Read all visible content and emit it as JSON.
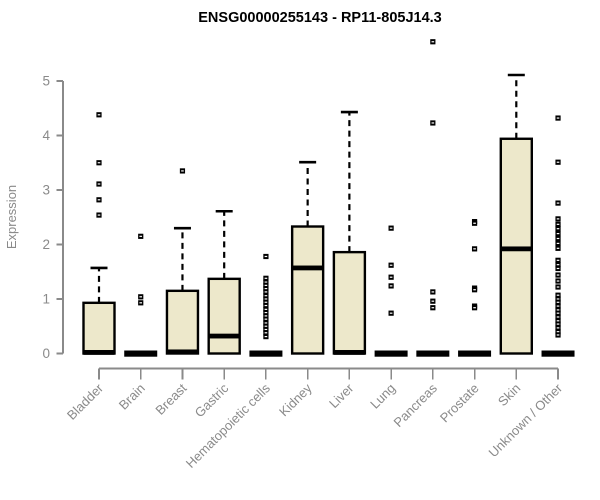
{
  "chart_data": {
    "type": "boxplot",
    "title": "ENSG00000255143 - RP11-805J14.3",
    "ylabel": "Expression",
    "xlabel": "",
    "ylim": [
      0,
      5
    ],
    "yticks": [
      0,
      1,
      2,
      3,
      4,
      5
    ],
    "grid": false,
    "legend": "none",
    "categories": [
      "Bladder",
      "Brain",
      "Breast",
      "Gastric",
      "Hematopoietic cells",
      "Kidney",
      "Liver",
      "Lung",
      "Pancreas",
      "Prostate",
      "Skin",
      "Unknown / Other"
    ],
    "series": [
      {
        "name": "Bladder",
        "q1": 0,
        "median": 0.02,
        "q3": 0.93,
        "whisker_low": 0,
        "whisker_high": 1.57,
        "outliers": [
          4.38,
          3.5,
          3.11,
          2.82,
          2.54
        ]
      },
      {
        "name": "Brain",
        "q1": 0,
        "median": 0,
        "q3": 0,
        "whisker_low": 0,
        "whisker_high": 0,
        "outliers": [
          2.15,
          1.04,
          0.93
        ]
      },
      {
        "name": "Breast",
        "q1": 0,
        "median": 0.03,
        "q3": 1.15,
        "whisker_low": 0,
        "whisker_high": 2.3,
        "outliers": [
          3.35
        ]
      },
      {
        "name": "Gastric",
        "q1": 0,
        "median": 0.32,
        "q3": 1.37,
        "whisker_low": 0,
        "whisker_high": 2.61,
        "outliers": []
      },
      {
        "name": "Hematopoietic cells",
        "q1": 0,
        "median": 0,
        "q3": 0,
        "whisker_low": 0,
        "whisker_high": 0,
        "outliers": [
          1.78,
          1.38,
          1.31,
          1.25,
          1.19,
          1.13,
          1.06,
          1.0,
          0.94,
          0.88,
          0.81,
          0.75,
          0.69,
          0.63,
          0.56,
          0.5,
          0.44,
          0.38,
          0.31
        ]
      },
      {
        "name": "Kidney",
        "q1": 0,
        "median": 1.57,
        "q3": 2.33,
        "whisker_low": 0,
        "whisker_high": 3.51,
        "outliers": []
      },
      {
        "name": "Liver",
        "q1": 0,
        "median": 0.02,
        "q3": 1.86,
        "whisker_low": 0,
        "whisker_high": 4.43,
        "outliers": []
      },
      {
        "name": "Lung",
        "q1": 0,
        "median": 0,
        "q3": 0,
        "whisker_low": 0,
        "whisker_high": 0,
        "outliers": [
          2.3,
          1.62,
          1.4,
          1.24,
          0.74
        ]
      },
      {
        "name": "Pancreas",
        "q1": 0,
        "median": 0,
        "q3": 0,
        "whisker_low": 0,
        "whisker_high": 0,
        "outliers": [
          5.72,
          4.23,
          1.13,
          0.96,
          0.84
        ]
      },
      {
        "name": "Prostate",
        "q1": 0,
        "median": 0,
        "q3": 0,
        "whisker_low": 0,
        "whisker_high": 0,
        "outliers": [
          2.42,
          2.39,
          1.92,
          1.2,
          1.17,
          0.87,
          0.84
        ]
      },
      {
        "name": "Skin",
        "q1": 0,
        "median": 1.92,
        "q3": 3.94,
        "whisker_low": 0,
        "whisker_high": 5.11,
        "outliers": []
      },
      {
        "name": "Unknown / Other",
        "q1": 0,
        "median": 0,
        "q3": 0,
        "whisker_low": 0,
        "whisker_high": 0,
        "outliers": [
          4.32,
          3.51,
          2.76,
          2.47,
          2.37,
          2.29,
          2.2,
          2.11,
          2.02,
          1.93,
          1.71,
          1.63,
          1.56,
          1.44,
          1.33,
          1.22,
          1.07,
          1.0,
          0.94,
          0.87,
          0.8,
          0.74,
          0.67,
          0.6,
          0.54,
          0.47,
          0.4,
          0.34
        ]
      }
    ]
  },
  "colors": {
    "box_fill": "#EDE8CB",
    "box_border": "#000000",
    "median": "#000000",
    "whisker": "#000000",
    "outlier": "#000000",
    "outlier_center": "#FFFFFF",
    "axis": "#8A8A8A",
    "tick_text": "#8A8A8A",
    "title_text": "#000000",
    "background": "#FFFFFF"
  }
}
